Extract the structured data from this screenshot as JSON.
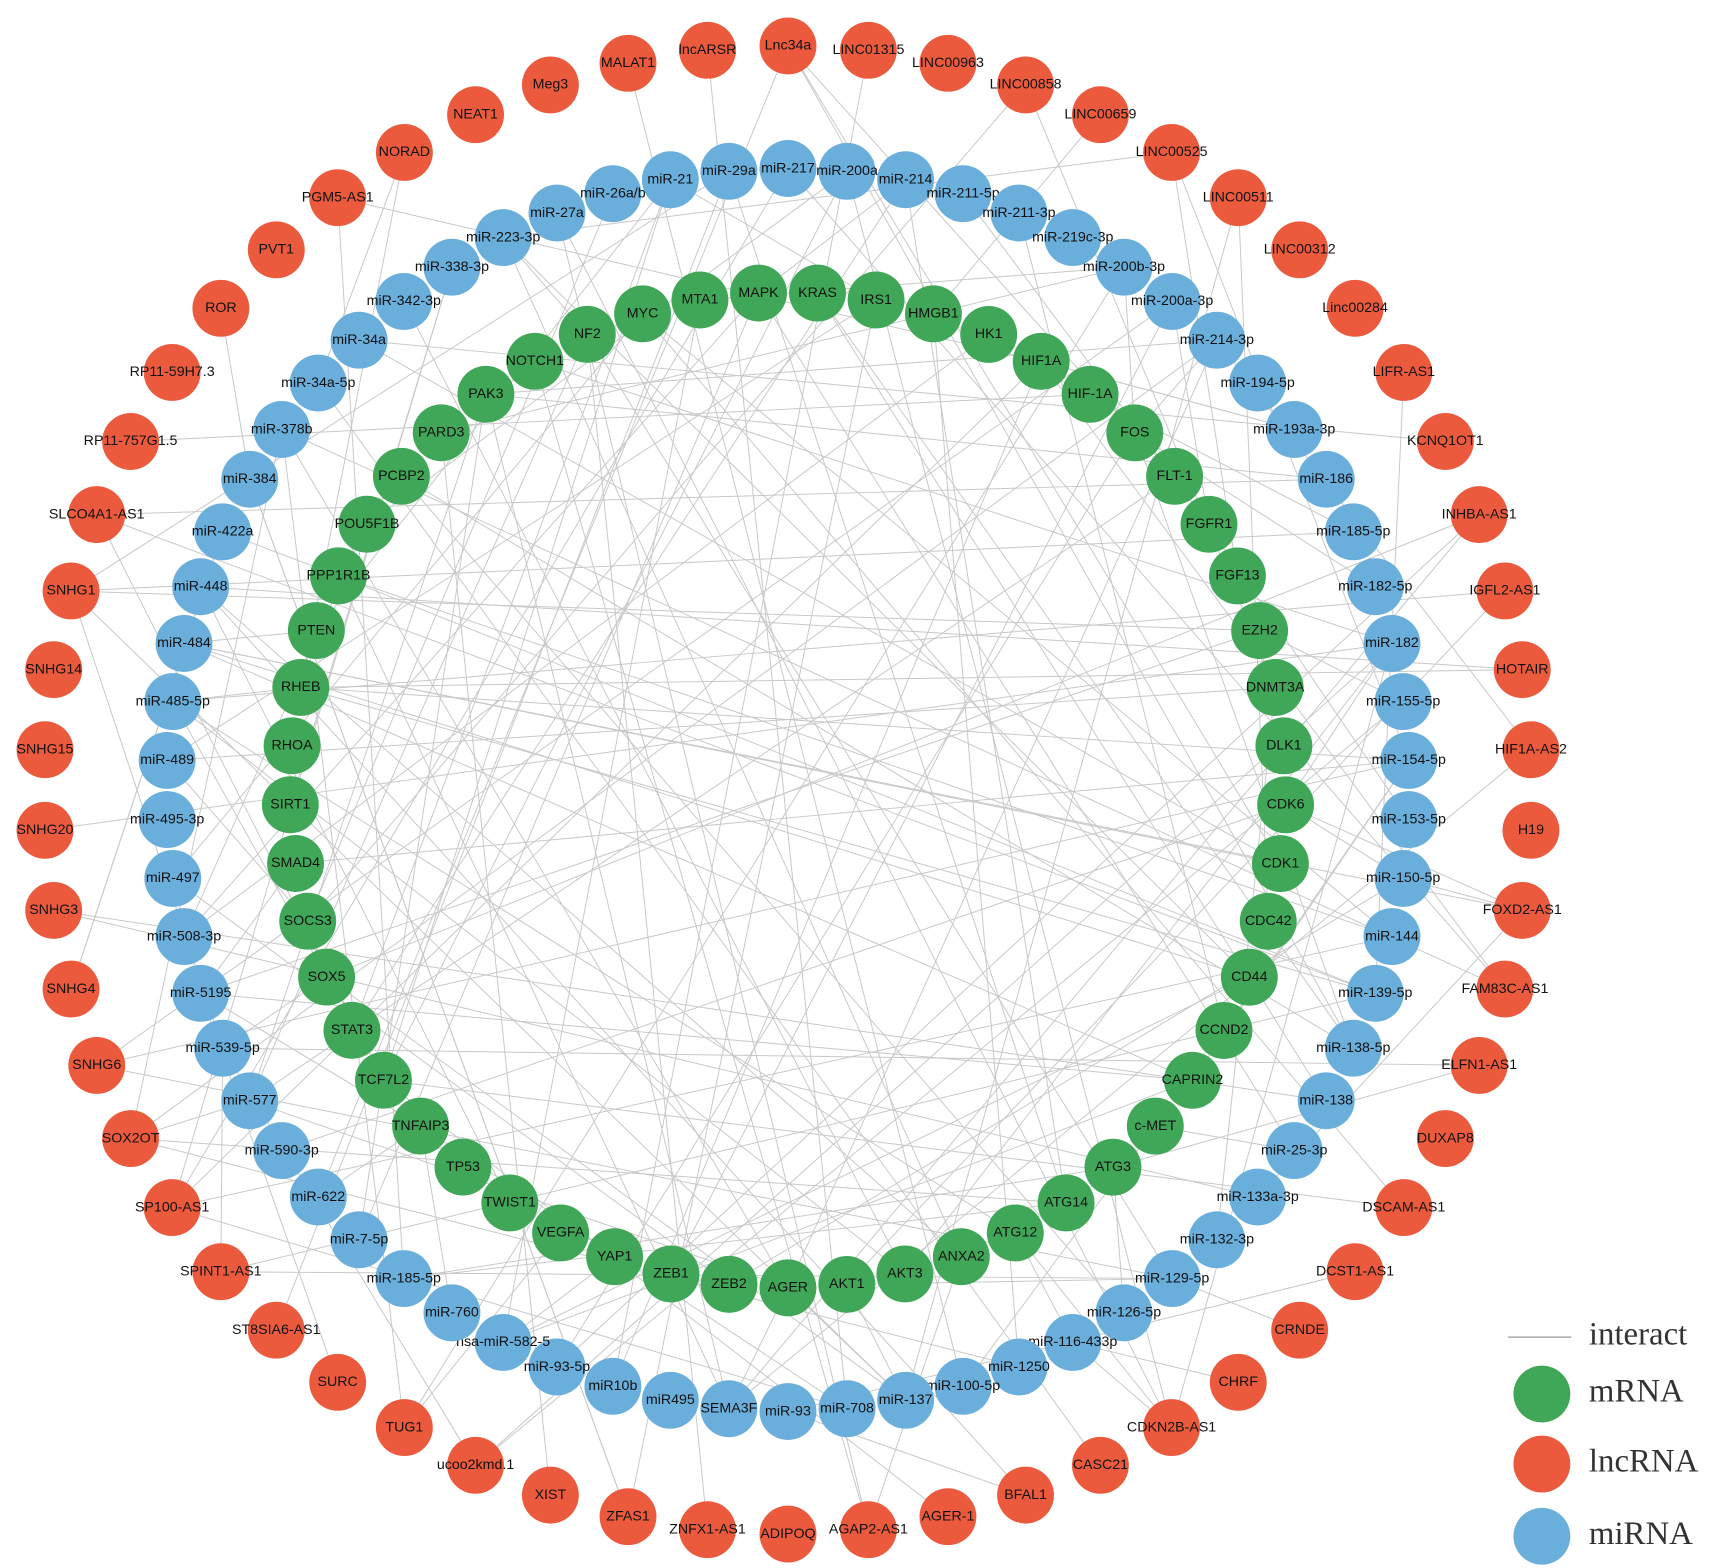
{
  "nodes": {
    "lncRNA": [
      "Lnc34a",
      "LINC01315",
      "LINC00963",
      "LINC00858",
      "LINC00659",
      "LINC00525",
      "LINC00511",
      "LINC00312",
      "Linc00284",
      "LIFR-AS1",
      "KCNQ1OT1",
      "INHBA-AS1",
      "IGFL2-AS1",
      "HOTAIR",
      "HIF1A-AS2",
      "H19",
      "FOXD2-AS1",
      "FAM83C-AS1",
      "ELFN1-AS1",
      "DUXAP8",
      "DSCAM-AS1",
      "DCST1-AS1",
      "CRNDE",
      "CHRF",
      "CDKN2B-AS1",
      "CASC21",
      "BFAL1",
      "AGER-1",
      "AGAP2-AS1",
      "ADIPOQ",
      "ZNFX1-AS1",
      "ZFAS1",
      "XIST",
      "ucoo2kmd.1",
      "TUG1",
      "SURC",
      "ST8SIA6-AS1",
      "SPINT1-AS1",
      "SP100-AS1",
      "SOX2OT",
      "SNHG6",
      "SNHG4",
      "SNHG3",
      "SNHG20",
      "SNHG15",
      "SNHG14",
      "SNHG1",
      "SLCO4A1-AS1",
      "RP11-757G1.5",
      "RP11-59H7.3",
      "ROR",
      "PVT1",
      "PGM5-AS1",
      "NORAD",
      "NEAT1",
      "Meg3",
      "MALAT1",
      "lncARSR"
    ],
    "miRNA": [
      "miR-217",
      "miR-200a",
      "miR-214",
      "miR-211-5p",
      "miR-211-3p",
      "miR-219c-3p",
      "miR-200b-3p",
      "miR-200a-3p",
      "miR-214-3p",
      "miR-194-5p",
      "miR-193a-3p",
      "miR-186",
      "miR-185-5p",
      "miR-182-5p",
      "miR-182",
      "miR-155-5p",
      "miR-154-5p",
      "miR-153-5p",
      "miR-150-5p",
      "miR-144",
      "miR-139-5p",
      "miR-138-5p",
      "miR-138",
      "miR-25-3p",
      "miR-133a-3p",
      "miR-132-3p",
      "miR-129-5p",
      "miR-126-5p",
      "miR-116-433p",
      "miR-1250",
      "miR-100-5p",
      "miR-137",
      "miR-708",
      "miR-93",
      "SEMA3F",
      "miR495",
      "miR10b",
      "miR-93-5p",
      "hsa-miR-582-5",
      "miR-760",
      "miR-185-5p",
      "miR-7-5p",
      "miR-622",
      "miR-590-3p",
      "miR-577",
      "miR-539-5p",
      "miR-5195",
      "miR-508-3p",
      "miR-497",
      "miR-495-3p",
      "miR-489",
      "miR-485-5p",
      "miR-484",
      "miR-448",
      "miR-422a",
      "miR-384",
      "miR-378b",
      "miR-34a-5p",
      "miR-34a",
      "miR-342-3p",
      "miR-338-3p",
      "miR-223-3p",
      "miR-27a",
      "miR-26a/b",
      "miR-21",
      "miR-29a"
    ],
    "mRNA": [
      "KRAS",
      "IRS1",
      "HMGB1",
      "HK1",
      "HIF1A",
      "HIF-1A",
      "FOS",
      "FLT-1",
      "FGFR1",
      "FGF13",
      "EZH2",
      "DNMT3A",
      "DLK1",
      "CDK6",
      "CDK1",
      "CDC42",
      "CD44",
      "CCND2",
      "CAPRIN2",
      "c-MET",
      "ATG3",
      "ATG14",
      "ATG12",
      "ANXA2",
      "AKT3",
      "AKT1",
      "AGER",
      "ZEB2",
      "ZEB1",
      "YAP1",
      "VEGFA",
      "TWIST1",
      "TP53",
      "TNFAIP3",
      "TCF7L2",
      "STAT3",
      "SOX5",
      "SOCS3",
      "SMAD4",
      "SIRT1",
      "RHOA",
      "RHEB",
      "PTEN",
      "PPP1R1B",
      "POU5F1B",
      "PCBP2",
      "PARD3",
      "PAK3",
      "NOTCH1",
      "NF2",
      "MYC",
      "MTA1",
      "MAPK"
    ]
  },
  "legend": [
    "interact",
    "mRNA",
    "lncRNA",
    "miRNA"
  ]
}
